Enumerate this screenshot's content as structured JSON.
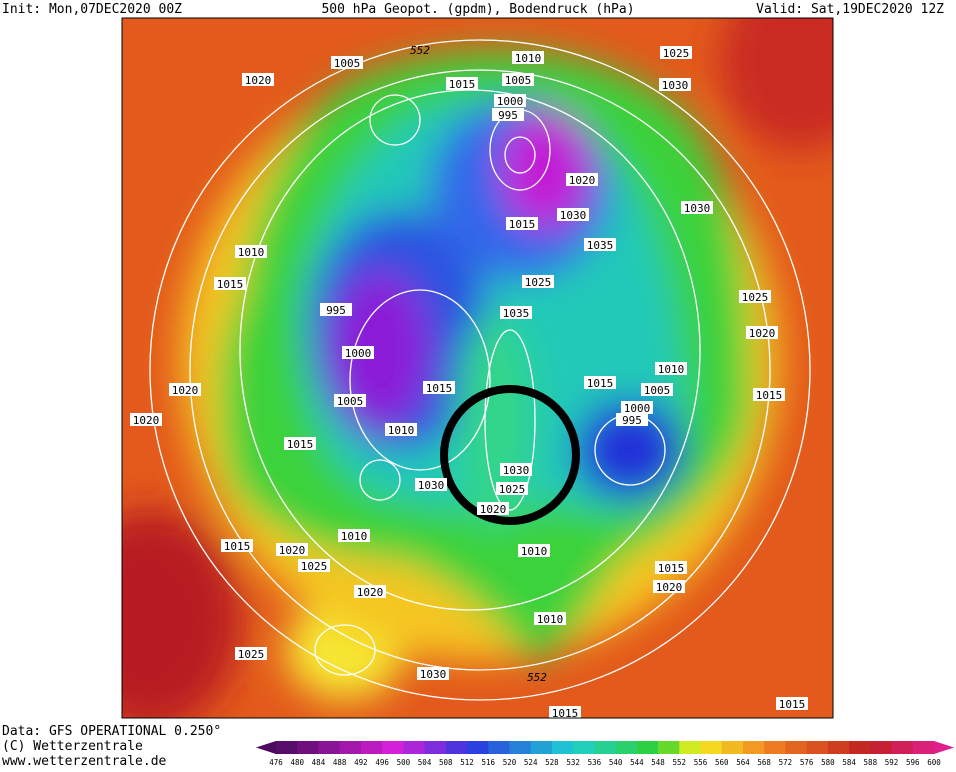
{
  "header": {
    "init": "Init: Mon,07DEC2020 00Z",
    "title": "500 hPa Geopot. (gpdm), Bodendruck (hPa)",
    "valid": "Valid: Sat,19DEC2020 12Z"
  },
  "footer": {
    "data": "Data: GFS OPERATIONAL 0.250°",
    "copyright": "(C) Wetterzentrale",
    "url": "www.wetterzentrale.de"
  },
  "map": {
    "isobar_labels": [
      1005,
      552,
      1010,
      1015,
      1005,
      1025,
      1030,
      1000,
      995,
      1020,
      1020,
      1030,
      1015,
      1035,
      1030,
      1010,
      1015,
      1025,
      995,
      1035,
      1025,
      1020,
      1000,
      1015,
      1015,
      1010,
      1005,
      1020,
      1005,
      1000,
      995,
      1015,
      1020,
      1010,
      1015,
      1030,
      1030,
      1025,
      1020,
      1010,
      1010,
      1015,
      1020,
      1025,
      1015,
      1020,
      1020,
      1010,
      1025,
      1030,
      552,
      1015,
      1015
    ]
  },
  "colorbar": {
    "labels": [
      476,
      480,
      484,
      488,
      492,
      496,
      500,
      504,
      508,
      512,
      516,
      520,
      524,
      528,
      532,
      536,
      540,
      544,
      548,
      552,
      556,
      560,
      564,
      568,
      572,
      576,
      580,
      584,
      588,
      592,
      596,
      600
    ]
  }
}
